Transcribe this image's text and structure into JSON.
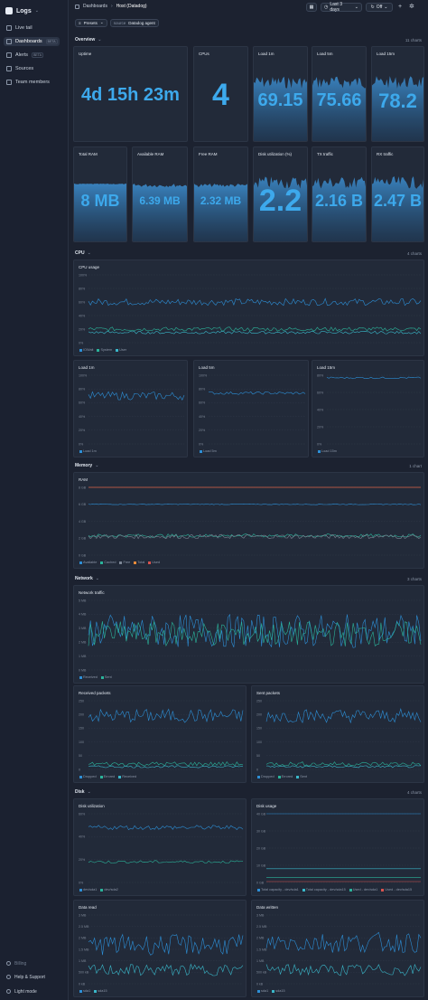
{
  "sidebar": {
    "app_title": "Logs",
    "items": [
      {
        "label": "Live tail",
        "icon": "live-tail-icon"
      },
      {
        "label": "Dashboards",
        "badge": "BETA",
        "icon": "dashboards-icon",
        "active": true
      },
      {
        "label": "Alerts",
        "badge": "BETA",
        "icon": "alerts-icon"
      },
      {
        "label": "Sources",
        "icon": "sources-icon"
      },
      {
        "label": "Team members",
        "icon": "team-members-icon"
      }
    ],
    "billing": "Billing",
    "help": "Help & Support",
    "theme": "Light mode"
  },
  "header": {
    "breadcrumb_root": "Dashboards",
    "breadcrumb_current": "Host (Datadog)",
    "time_range": "Last 3 days",
    "refresh": "Off"
  },
  "filters": {
    "presets": "Presets",
    "source_key": "source",
    "source_value": "Datadog agent"
  },
  "sections": {
    "overview": {
      "title": "Overview",
      "count": "11 charts"
    },
    "cpu": {
      "title": "CPU",
      "count": "4 charts"
    },
    "memory": {
      "title": "Memory",
      "count": "1 chart"
    },
    "network": {
      "title": "Network",
      "count": "3 charts"
    },
    "disk": {
      "title": "Disk",
      "count": "4 charts"
    }
  },
  "stats": [
    {
      "title": "Uptime",
      "value": "4d 15h 23m"
    },
    {
      "title": "CPUs",
      "value": "4"
    },
    {
      "title": "Load 1m",
      "value": "69.15"
    },
    {
      "title": "Load 5m",
      "value": "75.66"
    },
    {
      "title": "Load 15m",
      "value": "78.2"
    },
    {
      "title": "Total RAM",
      "value": "8 MB"
    },
    {
      "title": "Available RAM",
      "value": "6.39 MB"
    },
    {
      "title": "Free RAM",
      "value": "2.32 MB"
    },
    {
      "title": "Disk utilization (%)",
      "value": "2.2"
    },
    {
      "title": "TX traffic",
      "value": "2.16 B"
    },
    {
      "title": "RX traffic",
      "value": "2.47 B"
    }
  ],
  "colors": {
    "blue": "#2d8fd6",
    "teal": "#2bb39a",
    "cyan": "#3ab7c9",
    "orange": "#e68a3a",
    "red": "#d9534f",
    "gray": "#7d8796"
  },
  "chart_data": [
    {
      "type": "line",
      "title": "CPU usage",
      "yticks": [
        "100%",
        "80%",
        "60%",
        "40%",
        "20%",
        "0%"
      ],
      "ylim": [
        0,
        100
      ],
      "series": [
        {
          "name": "IOWait",
          "level": 60,
          "noise": 5
        },
        {
          "name": "System",
          "level": 20,
          "noise": 3
        },
        {
          "name": "User",
          "level": 15,
          "noise": 2
        }
      ]
    },
    {
      "type": "line",
      "title": "Load 1m",
      "yticks": [
        "100%",
        "80%",
        "60%",
        "40%",
        "20%",
        "0%"
      ],
      "ylim": [
        0,
        100
      ],
      "series": [
        {
          "name": "Load 1m",
          "level": 70,
          "noise": 6
        }
      ]
    },
    {
      "type": "line",
      "title": "Load 5m",
      "yticks": [
        "100%",
        "80%",
        "60%",
        "40%",
        "20%",
        "0%"
      ],
      "ylim": [
        0,
        100
      ],
      "series": [
        {
          "name": "Load 5m",
          "level": 74,
          "noise": 2
        }
      ]
    },
    {
      "type": "line",
      "title": "Load 15m",
      "yticks": [
        "80%",
        "60%",
        "40%",
        "20%",
        "0%"
      ],
      "ylim": [
        0,
        80
      ],
      "series": [
        {
          "name": "Load 15m",
          "level": 77,
          "noise": 1
        }
      ]
    },
    {
      "type": "line",
      "title": "RAM",
      "yticks": [
        "8 GB",
        "6 GB",
        "4 GB",
        "2 GB",
        "0 GB"
      ],
      "ylim": [
        0,
        8
      ],
      "series": [
        {
          "name": "Available",
          "level": 6.0,
          "noise": 0.05
        },
        {
          "name": "Cached",
          "level": 2.3,
          "noise": 0.2
        },
        {
          "name": "Free",
          "level": 2.2,
          "noise": 0.25
        },
        {
          "name": "Total",
          "level": 8,
          "noise": 0
        },
        {
          "name": "Used",
          "level": 8,
          "noise": 0
        }
      ]
    },
    {
      "type": "line",
      "title": "Network traffic",
      "yticks": [
        "5 MB",
        "4 MB",
        "3 MB",
        "2 MB",
        "1 MB",
        "0 MB"
      ],
      "ylim": [
        0,
        5
      ],
      "series": [
        {
          "name": "Received",
          "level": 2.8,
          "noise": 1.2
        },
        {
          "name": "Sent",
          "level": 2.6,
          "noise": 0.9
        }
      ]
    },
    {
      "type": "line",
      "title": "Received packets",
      "yticks": [
        "250",
        "200",
        "150",
        "100",
        "50",
        "0"
      ],
      "ylim": [
        0,
        250
      ],
      "series": [
        {
          "name": "Dropped",
          "level": 195,
          "noise": 25
        },
        {
          "name": "Errored",
          "level": 20,
          "noise": 8
        },
        {
          "name": "Received",
          "level": 10,
          "noise": 4
        }
      ]
    },
    {
      "type": "line",
      "title": "Sent packets",
      "yticks": [
        "250",
        "200",
        "150",
        "100",
        "50",
        "0"
      ],
      "ylim": [
        0,
        250
      ],
      "series": [
        {
          "name": "Dropped",
          "level": 195,
          "noise": 25
        },
        {
          "name": "Errored",
          "level": 20,
          "noise": 8
        },
        {
          "name": "Sent",
          "level": 10,
          "noise": 4
        }
      ]
    },
    {
      "type": "line",
      "title": "Disk utilization",
      "yticks": [
        "60%",
        "40%",
        "20%",
        "0%"
      ],
      "ylim": [
        0,
        60
      ],
      "series": [
        {
          "name": "dev/sda1",
          "level": 48,
          "noise": 2
        },
        {
          "name": "dev/sda2",
          "level": 18,
          "noise": 1.2
        }
      ]
    },
    {
      "type": "line",
      "title": "Disk usage",
      "yticks": [
        "40 GB",
        "30 GB",
        "20 GB",
        "10 GB",
        "0 GB"
      ],
      "ylim": [
        0,
        40
      ],
      "series": [
        {
          "name": "Total capacity - dev/sda1",
          "level": 40,
          "noise": 0
        },
        {
          "name": "Total capacity - dev/sda15",
          "level": 8,
          "noise": 0
        },
        {
          "name": "Used - dev/sda1",
          "level": 3,
          "noise": 0
        },
        {
          "name": "Used - dev/sda15",
          "level": 0.5,
          "noise": 0
        }
      ]
    },
    {
      "type": "line",
      "title": "Data read",
      "yticks": [
        "3 MB",
        "2.5 MB",
        "2 MB",
        "1.5 MB",
        "1 MB",
        "500 kB",
        "0 kB"
      ],
      "ylim": [
        0,
        3
      ],
      "series": [
        {
          "name": "sda1",
          "level": 1.7,
          "noise": 0.45
        },
        {
          "name": "sda15",
          "level": 0.6,
          "noise": 0.25
        }
      ]
    },
    {
      "type": "line",
      "title": "Data written",
      "yticks": [
        "3 MB",
        "2.5 MB",
        "2 MB",
        "1.5 MB",
        "1 MB",
        "500 kB",
        "0 kB"
      ],
      "ylim": [
        0,
        3
      ],
      "series": [
        {
          "name": "sda1",
          "level": 1.8,
          "noise": 0.45
        },
        {
          "name": "sda15",
          "level": 0.6,
          "noise": 0.25
        }
      ]
    }
  ]
}
